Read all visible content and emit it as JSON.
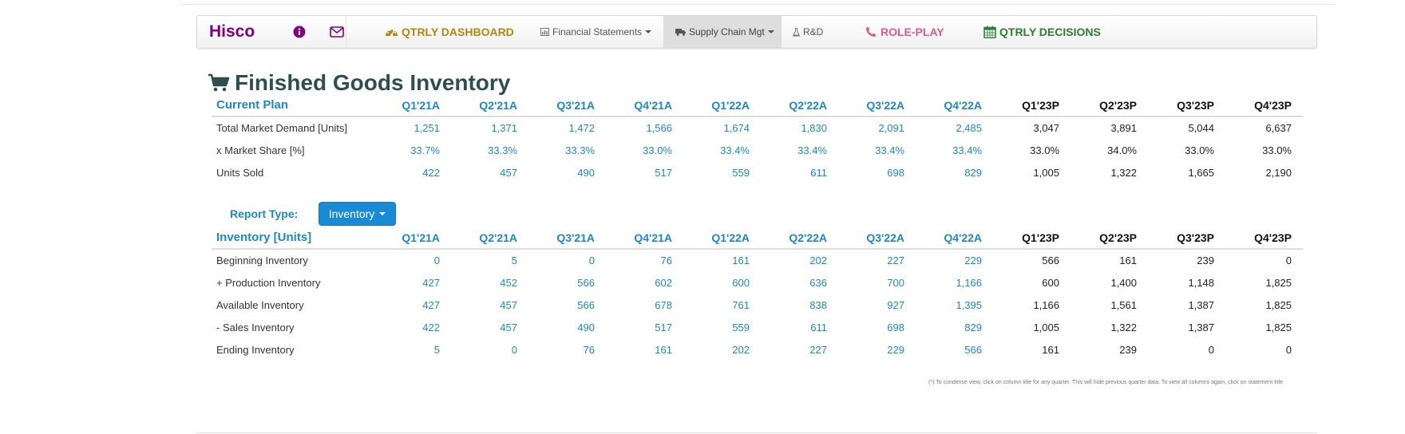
{
  "nav": {
    "brand": "Hisco",
    "dashboard": "QTRLY DASHBOARD",
    "financial_statements": "Financial Statements",
    "supply_chain": "Supply Chain Mgt",
    "rd": "R&D",
    "role_play": "ROLE-PLAY",
    "decisions": "QTRLY DECISIONS"
  },
  "page": {
    "title": "Finished Goods Inventory"
  },
  "quarters": [
    "Q1'21A",
    "Q2'21A",
    "Q3'21A",
    "Q4'21A",
    "Q1'22A",
    "Q2'22A",
    "Q3'22A",
    "Q4'22A",
    "Q1'23P",
    "Q2'23P",
    "Q3'23P",
    "Q4'23P"
  ],
  "current_plan": {
    "header": "Current Plan",
    "rows": [
      {
        "label": "Total Market Demand [Units]",
        "values": [
          "1,251",
          "1,371",
          "1,472",
          "1,566",
          "1,674",
          "1,830",
          "2,091",
          "2,485",
          "3,047",
          "3,891",
          "5,044",
          "6,637"
        ]
      },
      {
        "label": "x Market Share [%]",
        "values": [
          "33.7%",
          "33.3%",
          "33.3%",
          "33.0%",
          "33.4%",
          "33.4%",
          "33.4%",
          "33.4%",
          "33.0%",
          "34.0%",
          "33.0%",
          "33.0%"
        ]
      },
      {
        "label": "Units Sold",
        "values": [
          "422",
          "457",
          "490",
          "517",
          "559",
          "611",
          "698",
          "829",
          "1,005",
          "1,322",
          "1,665",
          "2,190"
        ]
      }
    ]
  },
  "report": {
    "label": "Report Type:",
    "selected": "Inventory"
  },
  "inventory": {
    "header": "Inventory [Units]",
    "rows": [
      {
        "label": "Beginning Inventory",
        "values": [
          "0",
          "5",
          "0",
          "76",
          "161",
          "202",
          "227",
          "229",
          "566",
          "161",
          "239",
          "0"
        ]
      },
      {
        "label": "+ Production Inventory",
        "values": [
          "427",
          "452",
          "566",
          "602",
          "600",
          "636",
          "700",
          "1,166",
          "600",
          "1,400",
          "1,148",
          "1,825"
        ]
      },
      {
        "label": "Available Inventory",
        "values": [
          "427",
          "457",
          "566",
          "678",
          "761",
          "838",
          "927",
          "1,395",
          "1,166",
          "1,561",
          "1,387",
          "1,825"
        ]
      },
      {
        "label": "- Sales Inventory",
        "values": [
          "422",
          "457",
          "490",
          "517",
          "559",
          "611",
          "698",
          "829",
          "1,005",
          "1,322",
          "1,387",
          "1,825"
        ]
      },
      {
        "label": "Ending Inventory",
        "values": [
          "5",
          "0",
          "76",
          "161",
          "202",
          "227",
          "229",
          "566",
          "161",
          "239",
          "0",
          "0"
        ]
      }
    ]
  },
  "footnote": "(*) To condense view, click on column title for any quarter. This will hide previous quarter data. To view all columns again, click on statement title",
  "colors": {
    "accent": "#1f86c9",
    "brand": "#800080",
    "dashboard": "#b8860b",
    "role_play": "#e05a8a",
    "decisions": "#2e7d32",
    "title": "#2f4f4f"
  }
}
